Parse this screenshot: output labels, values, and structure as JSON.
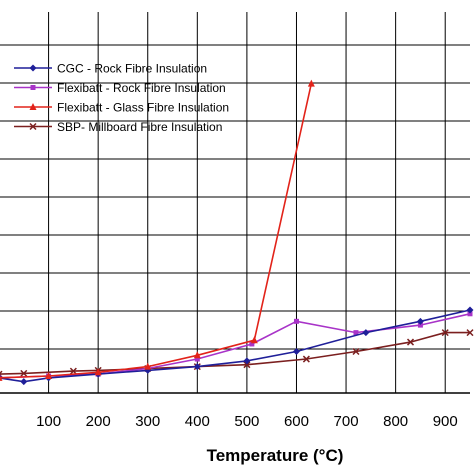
{
  "chart_data": {
    "type": "line",
    "title": "",
    "xlabel": "Temperature (°C)",
    "ylabel": "",
    "xlim": [
      0,
      950
    ],
    "ylim": [
      -1,
      100
    ],
    "x_ticks": [
      100,
      200,
      300,
      400,
      500,
      600,
      700,
      800,
      900
    ],
    "grid": true,
    "legend_position": "top-left",
    "series": [
      {
        "name": "CGC - Rock Fibre Insulation",
        "color": "#1f1f99",
        "marker": "diamond",
        "points": [
          [
            0,
            3
          ],
          [
            50,
            2
          ],
          [
            100,
            3
          ],
          [
            200,
            4
          ],
          [
            300,
            5
          ],
          [
            400,
            6
          ],
          [
            500,
            7.5
          ],
          [
            600,
            10
          ],
          [
            740,
            15
          ],
          [
            850,
            18
          ],
          [
            950,
            21
          ]
        ]
      },
      {
        "name": "Flexibatt - Rock Fibre Insulation",
        "color": "#a833c8",
        "marker": "square",
        "points": [
          [
            0,
            3
          ],
          [
            100,
            3.5
          ],
          [
            200,
            4
          ],
          [
            300,
            5.5
          ],
          [
            400,
            8
          ],
          [
            510,
            12
          ],
          [
            600,
            18
          ],
          [
            720,
            15
          ],
          [
            850,
            17
          ],
          [
            950,
            20
          ]
        ]
      },
      {
        "name": "Flexibatt - Glass Fibre Insulation",
        "color": "#e2231a",
        "marker": "triangle",
        "points": [
          [
            0,
            3
          ],
          [
            100,
            3.5
          ],
          [
            200,
            4.5
          ],
          [
            300,
            6
          ],
          [
            400,
            9
          ],
          [
            515,
            13
          ],
          [
            630,
            81
          ]
        ]
      },
      {
        "name": "SBP- Millboard Fibre Insulation",
        "color": "#7b1f1f",
        "marker": "x",
        "points": [
          [
            0,
            4
          ],
          [
            50,
            4.2
          ],
          [
            150,
            4.8
          ],
          [
            200,
            5
          ],
          [
            300,
            5.5
          ],
          [
            400,
            6
          ],
          [
            500,
            6.5
          ],
          [
            620,
            8
          ],
          [
            720,
            10
          ],
          [
            830,
            12.5
          ],
          [
            900,
            15
          ],
          [
            950,
            15
          ]
        ]
      }
    ]
  }
}
